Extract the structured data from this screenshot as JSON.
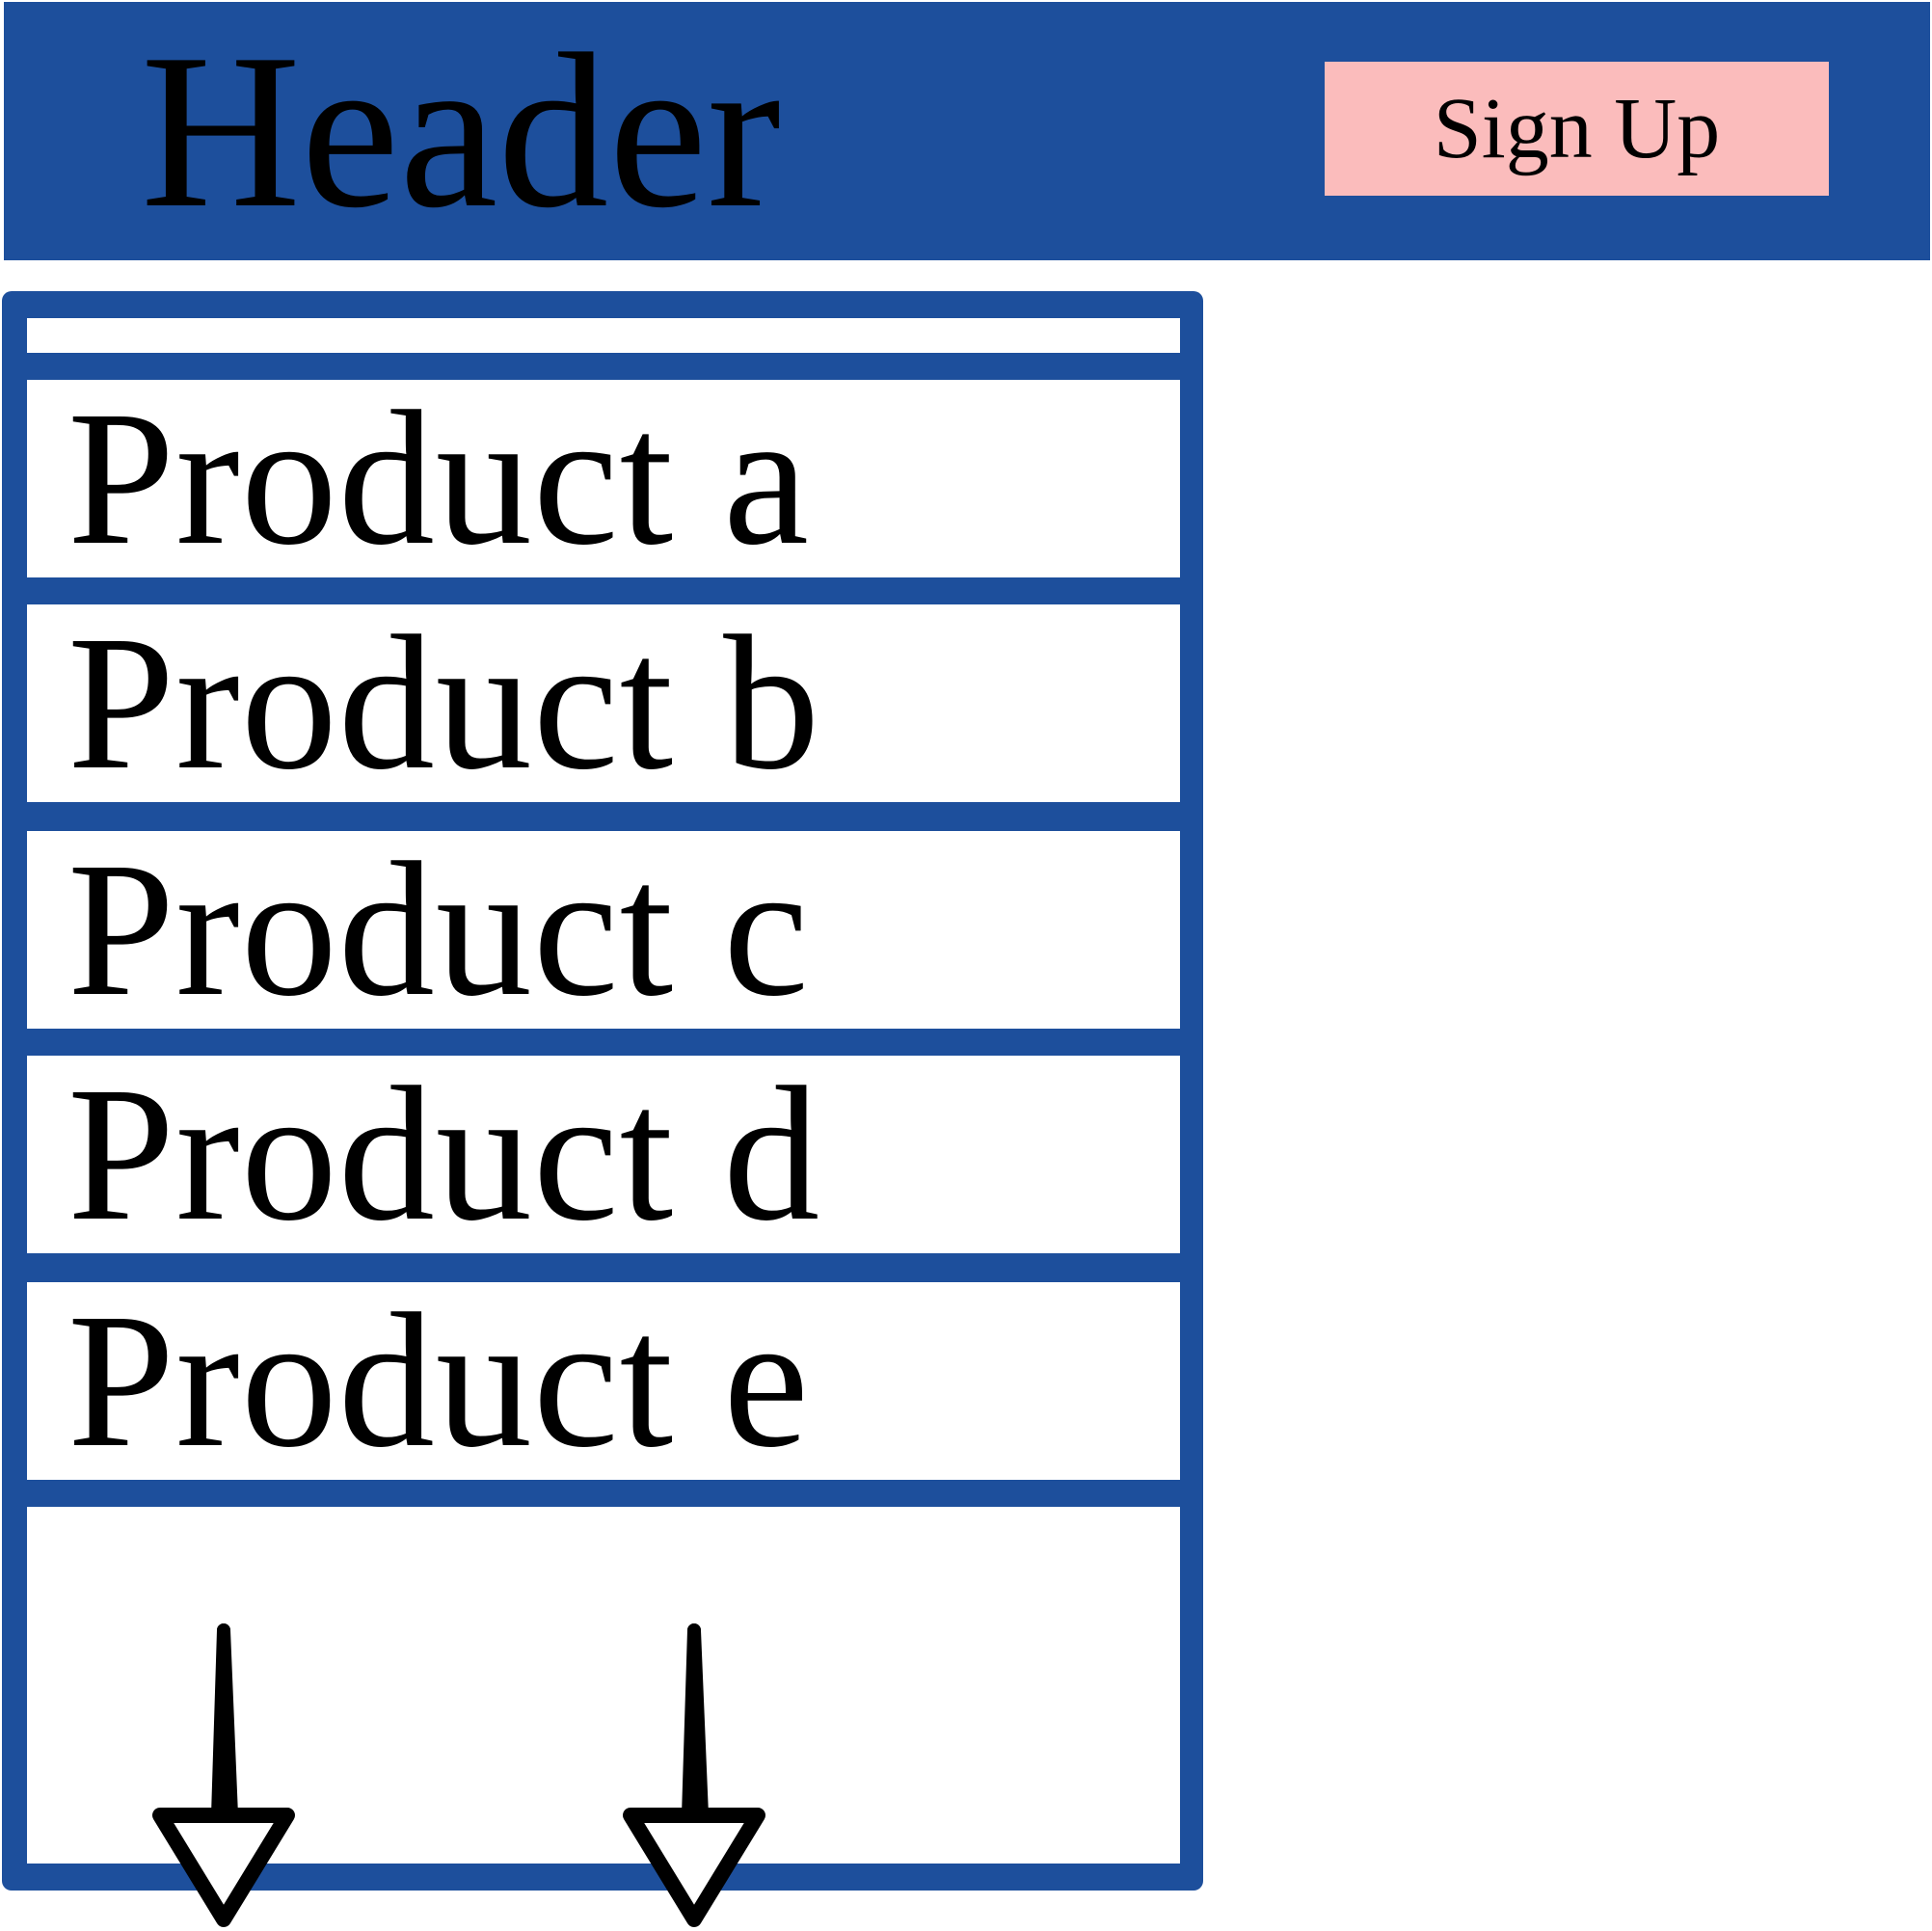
{
  "header": {
    "title": "Header",
    "signup_label": "Sign Up"
  },
  "product_list": {
    "items": [
      {
        "label": "Product a"
      },
      {
        "label": "Product b"
      },
      {
        "label": "Product c"
      },
      {
        "label": "Product d"
      },
      {
        "label": "Product e"
      }
    ],
    "arrows": [
      "down-arrow-icon",
      "down-arrow-icon"
    ]
  },
  "colors": {
    "header_background": "#1d4f9c",
    "signup_background": "#fbbcbc",
    "panel_border": "#1d4f9c",
    "text": "#000000"
  }
}
